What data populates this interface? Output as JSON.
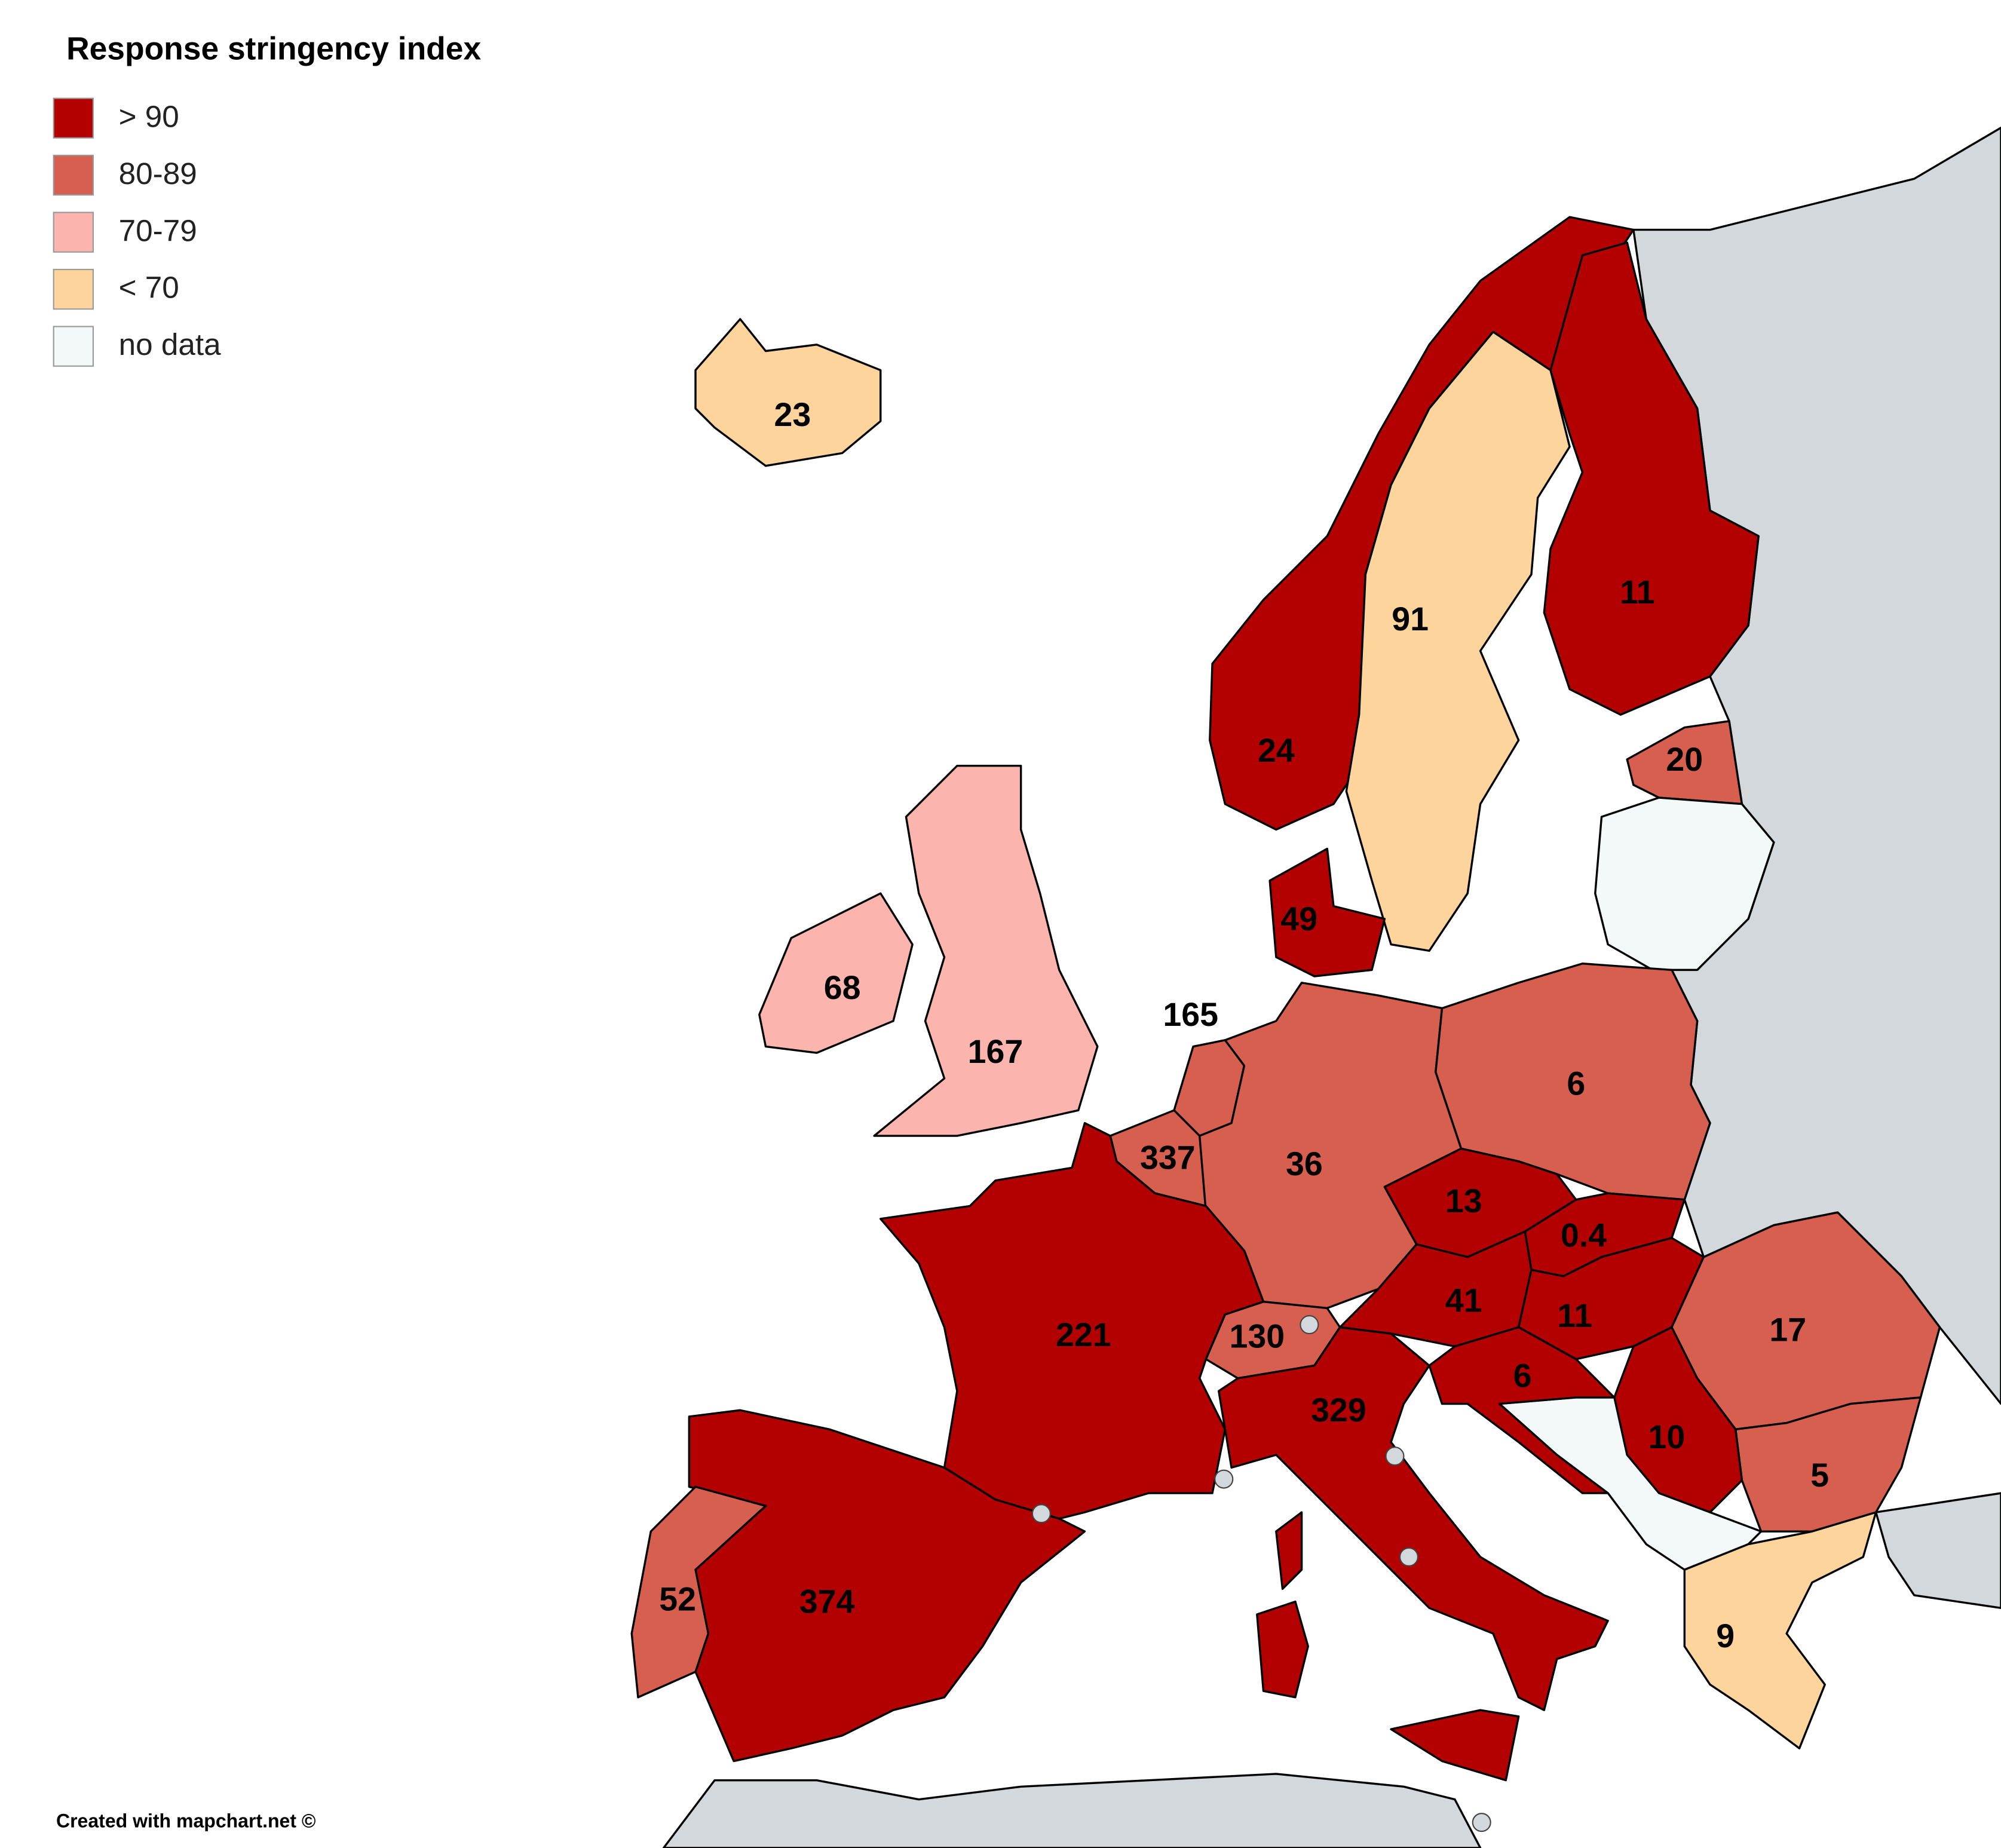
{
  "title": "Response stringency index",
  "legend": [
    {
      "label": "> 90",
      "color": "#b30000"
    },
    {
      "label": "80-89",
      "color": "#d65f4f"
    },
    {
      "label": "70-79",
      "color": "#fbb4ae"
    },
    {
      "label": "< 70",
      "color": "#fcd49c"
    },
    {
      "label": "no data",
      "color": "#f3f9f9"
    }
  ],
  "regions": [
    {
      "label": 23,
      "color": "#fcd49c"
    },
    {
      "label": 24,
      "color": "#b30000"
    },
    {
      "label": 91,
      "color": "#fcd49c"
    },
    {
      "label": 11,
      "color": "#b30000"
    },
    {
      "label": 20,
      "color": "#d65f4f"
    },
    {
      "color": "#f3f9f9"
    },
    {
      "label": 49,
      "color": "#b30000"
    },
    {
      "label": 68,
      "color": "#fbb4ae"
    },
    {
      "label": 167,
      "color": "#fbb4ae"
    },
    {
      "label": 165,
      "color": "#d65f4f"
    },
    {
      "label": 337,
      "color": "#d65f4f"
    },
    {
      "label": 36,
      "color": "#d65f4f"
    },
    {
      "label": 6,
      "color": "#d65f4f"
    },
    {
      "label": 13,
      "color": "#b30000"
    },
    {
      "label": 0.4,
      "color": "#b30000"
    },
    {
      "label": 41,
      "color": "#b30000"
    },
    {
      "label": 11,
      "color": "#b30000"
    },
    {
      "label": 17,
      "color": "#d65f4f"
    },
    {
      "label": 5,
      "color": "#d65f4f"
    },
    {
      "label": 10,
      "color": "#b30000"
    },
    {
      "color": "#f3f9f9"
    },
    {
      "label": 6,
      "color": "#b30000"
    },
    {
      "label": 9,
      "color": "#fcd49c"
    },
    {
      "label": 221,
      "color": "#b30000"
    },
    {
      "label": 130,
      "color": "#d65f4f"
    },
    {
      "label": 329,
      "color": "#b30000"
    },
    {
      "color": "#b30000"
    },
    {
      "color": "#b30000"
    },
    {
      "color": "#b30000"
    },
    {
      "label": 374,
      "color": "#b30000"
    },
    {
      "label": 52,
      "color": "#d65f4f"
    }
  ],
  "footer": "Created with mapchart.net ©"
}
